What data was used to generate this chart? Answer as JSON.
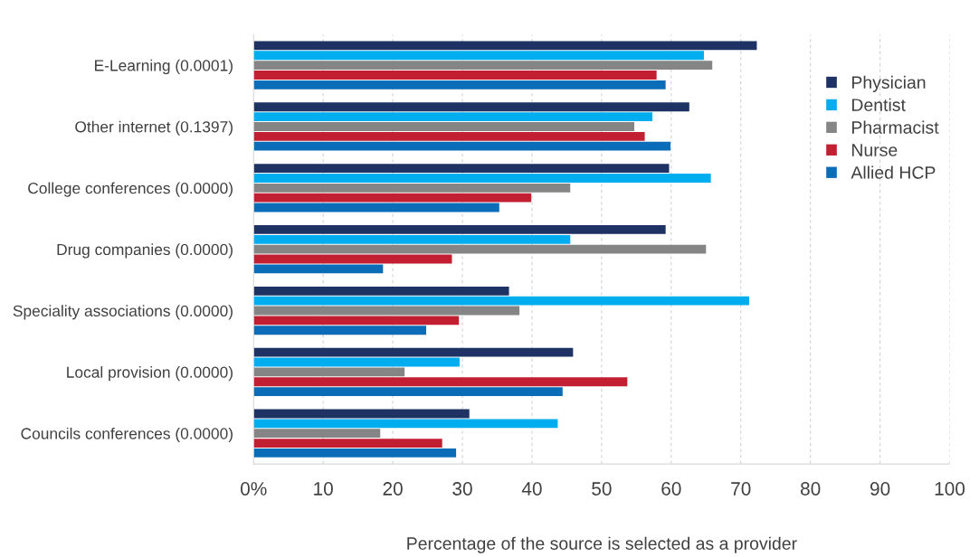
{
  "chart_data": {
    "type": "bar",
    "orientation": "horizontal",
    "xlabel": "Percentage of the source is selected as a provider",
    "categories": [
      "E-Learning (0.0001)",
      "Other internet (0.1397)",
      "College conferences (0.0000)",
      "Drug companies (0.0000)",
      "Speciality associations (0.0000)",
      "Local provision (0.0000)",
      "Councils conferences (0.0000)"
    ],
    "series": [
      {
        "name": "Physician",
        "color": "#1f3264",
        "values": [
          72.3,
          62.6,
          59.7,
          59.2,
          36.7,
          45.9,
          31.0
        ]
      },
      {
        "name": "Dentist",
        "color": "#00aeef",
        "values": [
          64.7,
          57.3,
          65.7,
          45.5,
          71.2,
          29.6,
          43.7
        ]
      },
      {
        "name": "Pharmacist",
        "color": "#858585",
        "values": [
          65.9,
          54.7,
          45.5,
          65.0,
          38.2,
          21.7,
          18.2
        ]
      },
      {
        "name": "Nurse",
        "color": "#c21f32",
        "values": [
          57.9,
          56.2,
          39.9,
          28.5,
          29.5,
          53.7,
          27.1
        ]
      },
      {
        "name": "Allied HCP",
        "color": "#0b6db7",
        "values": [
          59.2,
          59.9,
          35.3,
          18.6,
          24.8,
          44.4,
          29.1
        ]
      }
    ],
    "xlim": [
      0,
      100
    ],
    "xticks": [
      {
        "value": 0,
        "label": "0%"
      },
      10,
      20,
      30,
      40,
      50,
      60,
      70,
      80,
      90,
      100
    ],
    "grid": "x",
    "legend": "right"
  }
}
